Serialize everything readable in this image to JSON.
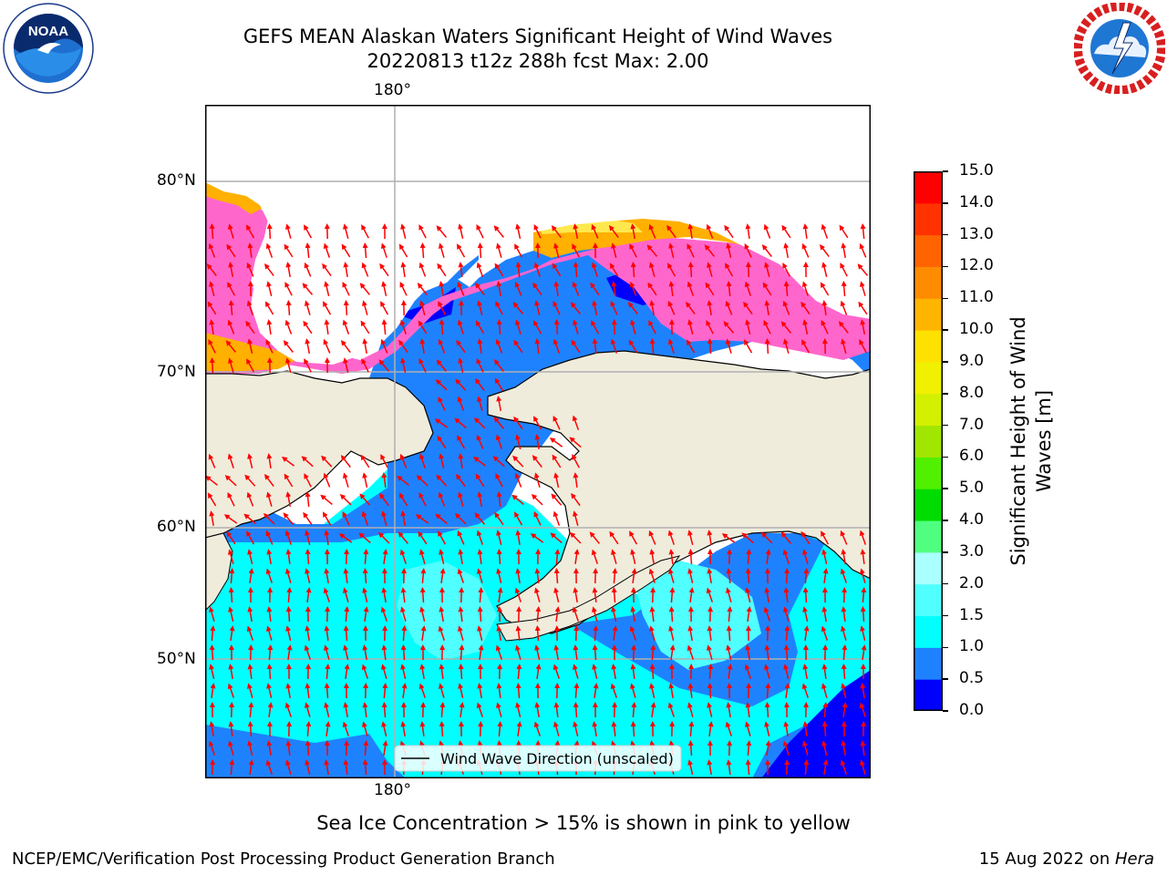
{
  "title": {
    "line1": "GEFS MEAN Alaskan Waters Significant Height of Wind Waves",
    "line2": "20220813 t12z 288h fcst   Max: 2.00"
  },
  "logos": {
    "left_text": "NOAA",
    "left_ring": "NATIONAL OCEANIC AND ATMOSPHERIC ADMINISTRATION · U.S. DEPARTMENT OF COMMERCE",
    "right_ring": "NATIONAL WEATHER SERVICE"
  },
  "map": {
    "lon_label_top": "180°",
    "lon_label_bottom": "180°",
    "lat_labels": [
      "80°N",
      "70°N",
      "60°N",
      "50°N"
    ],
    "legend_label": "Wind Wave Direction (unscaled)",
    "colors": {
      "land": "#efecdc",
      "ice_pink": "#ff66cc",
      "ice_orange": "#ffb000",
      "ice_yellow": "#ffe84d",
      "arrow": "#ff0000"
    }
  },
  "colorbar": {
    "label_line1": "Significant Height of Wind",
    "label_line2": "Waves [m]",
    "ticks": [
      "0.0",
      "0.5",
      "1.0",
      "1.5",
      "2.0",
      "3.0",
      "4.0",
      "5.0",
      "6.0",
      "7.0",
      "8.0",
      "9.0",
      "10.0",
      "11.0",
      "12.0",
      "13.0",
      "14.0",
      "15.0"
    ],
    "colors": [
      "#0000ff",
      "#1e82ff",
      "#00ffff",
      "#50ffff",
      "#aaffff",
      "#50ff80",
      "#00dc00",
      "#50f000",
      "#a0e600",
      "#d2f000",
      "#f0f000",
      "#ffe100",
      "#ffb400",
      "#ff8c00",
      "#ff6400",
      "#ff3200",
      "#ff0000"
    ]
  },
  "note": "Sea Ice Concentration > 15% is shown in pink to yellow",
  "footer": {
    "left": "NCEP/EMC/Verification Post Processing Product Generation Branch",
    "right_date": "15 Aug 2022 on ",
    "right_host": "Hera"
  }
}
